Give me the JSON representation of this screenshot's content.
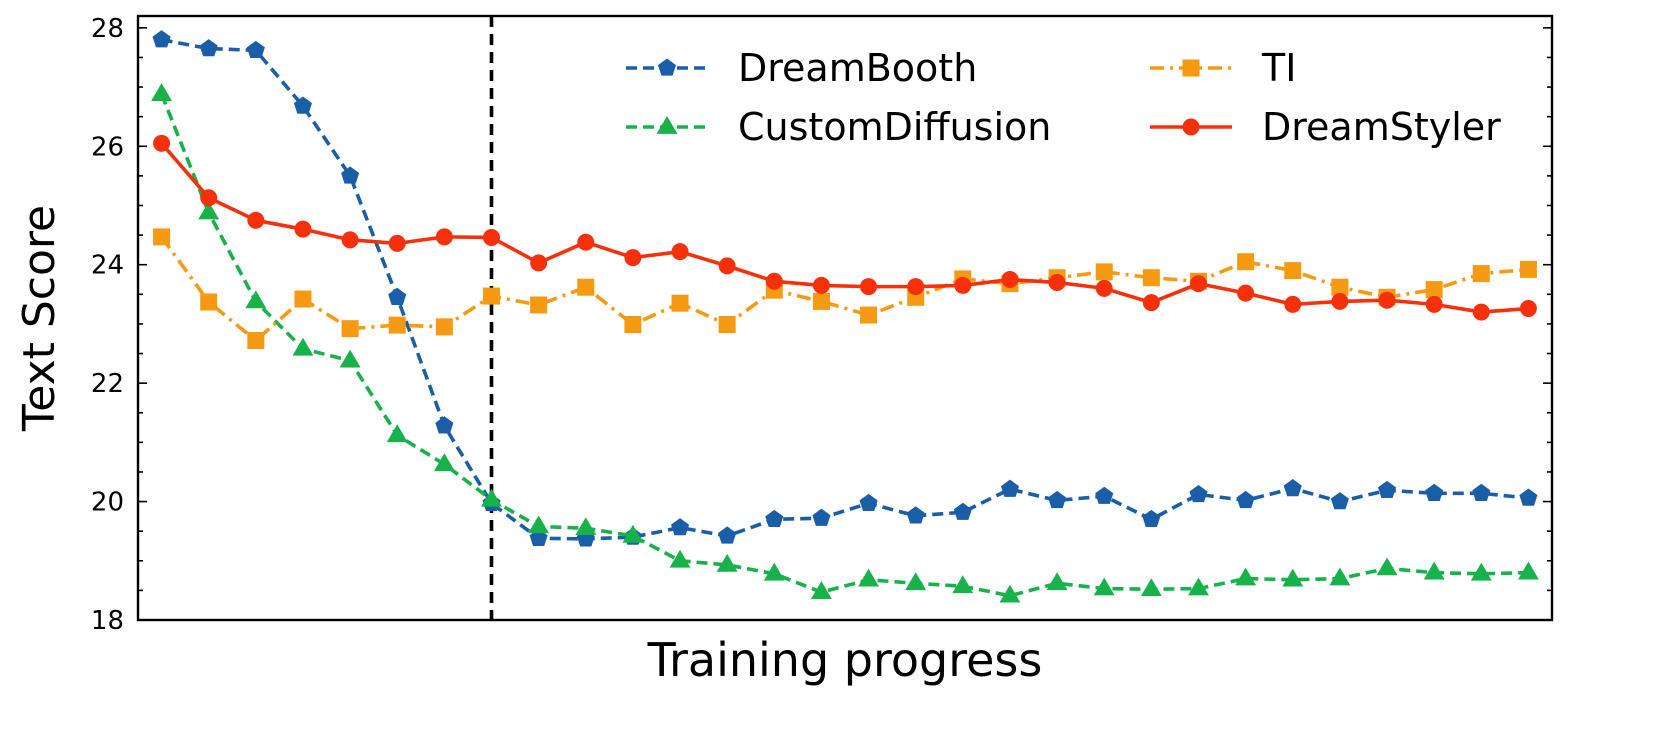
{
  "chart_data": {
    "type": "line",
    "title": "",
    "xlabel": "Training progress",
    "ylabel": "Text Score",
    "ylim": [
      18,
      28.2
    ],
    "yticks": [
      18,
      20,
      22,
      24,
      26,
      28
    ],
    "x_count": 30,
    "x_range": [
      -0.5,
      29.5
    ],
    "vline_x": 7,
    "grid": false,
    "legend_position": "upper-right",
    "series": [
      {
        "name": "DreamBooth",
        "color": "#1a5ea8",
        "linestyle": "dashed",
        "marker": "pentagon",
        "values": [
          27.8,
          27.65,
          27.62,
          26.68,
          25.5,
          23.45,
          21.28,
          19.97,
          19.38,
          19.37,
          19.4,
          19.56,
          19.42,
          19.7,
          19.72,
          19.97,
          19.76,
          19.82,
          20.21,
          20.02,
          20.09,
          19.7,
          20.12,
          20.02,
          20.22,
          20.0,
          20.19,
          20.14,
          20.14,
          20.06
        ]
      },
      {
        "name": "CustomDiffusion",
        "color": "#17b24a",
        "linestyle": "dashed",
        "marker": "triangle",
        "values": [
          26.88,
          24.88,
          23.38,
          22.58,
          22.38,
          21.12,
          20.63,
          20.03,
          19.58,
          19.55,
          19.42,
          19.0,
          18.93,
          18.78,
          18.47,
          18.68,
          18.62,
          18.57,
          18.41,
          18.62,
          18.53,
          18.52,
          18.53,
          18.7,
          18.68,
          18.7,
          18.87,
          18.8,
          18.78,
          18.8
        ]
      },
      {
        "name": "TI",
        "color": "#f59a12",
        "linestyle": "dashdot",
        "marker": "square",
        "values": [
          24.47,
          23.37,
          22.72,
          23.42,
          22.92,
          22.98,
          22.95,
          23.47,
          23.32,
          23.62,
          22.99,
          23.35,
          22.99,
          23.57,
          23.38,
          23.15,
          23.45,
          23.76,
          23.68,
          23.78,
          23.88,
          23.78,
          23.72,
          24.05,
          23.9,
          23.62,
          23.45,
          23.58,
          23.85,
          23.92
        ]
      },
      {
        "name": "DreamStyler",
        "color": "#f5300a",
        "linestyle": "solid",
        "marker": "circle",
        "values": [
          26.05,
          25.13,
          24.75,
          24.6,
          24.42,
          24.36,
          24.47,
          24.46,
          24.03,
          24.38,
          24.12,
          24.22,
          23.98,
          23.72,
          23.65,
          23.63,
          23.63,
          23.65,
          23.75,
          23.7,
          23.6,
          23.36,
          23.68,
          23.52,
          23.33,
          23.38,
          23.4,
          23.33,
          23.2,
          23.26
        ]
      }
    ],
    "legend": {
      "columns": [
        [
          "DreamBooth",
          "CustomDiffusion"
        ],
        [
          "TI",
          "DreamStyler"
        ]
      ]
    }
  }
}
